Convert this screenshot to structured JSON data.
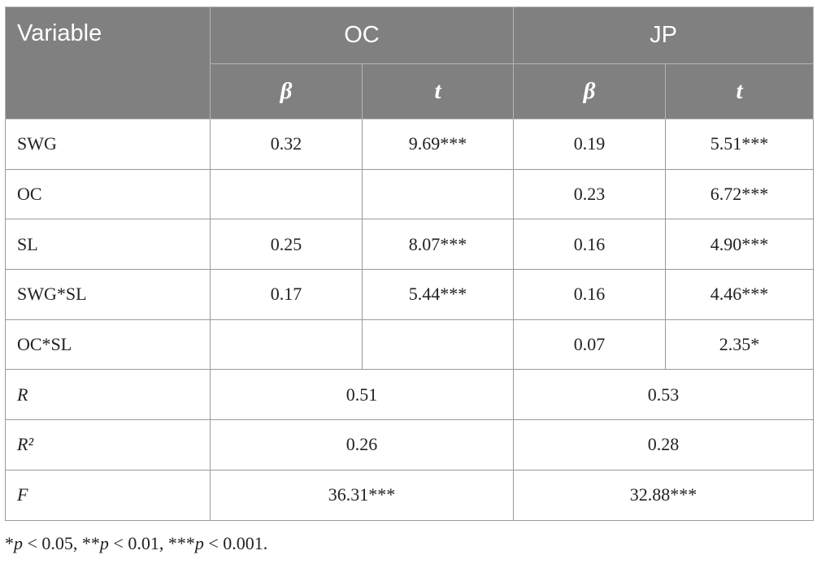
{
  "table": {
    "header": {
      "variable": "Variable",
      "groups": [
        "OC",
        "JP"
      ],
      "sub": [
        "β",
        "t",
        "β",
        "t"
      ]
    },
    "rows": [
      [
        "SWG",
        "0.32",
        "9.69***",
        "0.19",
        "5.51***"
      ],
      [
        "OC",
        null,
        null,
        "0.23",
        "6.72***"
      ],
      [
        "SL",
        "0.25",
        "8.07***",
        "0.16",
        "4.90***"
      ],
      [
        "SWG*SL",
        "0.17",
        "5.44***",
        "0.16",
        "4.46***"
      ],
      [
        "OC*SL",
        null,
        null,
        "0.07",
        "2.35*"
      ]
    ],
    "summary": [
      [
        "R",
        "0.51",
        "0.53"
      ],
      [
        "R²",
        "0.26",
        "0.28"
      ],
      [
        "F",
        "36.31***",
        "32.88***"
      ]
    ]
  },
  "footnote": [
    "*",
    "p",
    " < 0.05, **",
    "p",
    " < 0.01, ***",
    "p",
    " < 0.001."
  ]
}
